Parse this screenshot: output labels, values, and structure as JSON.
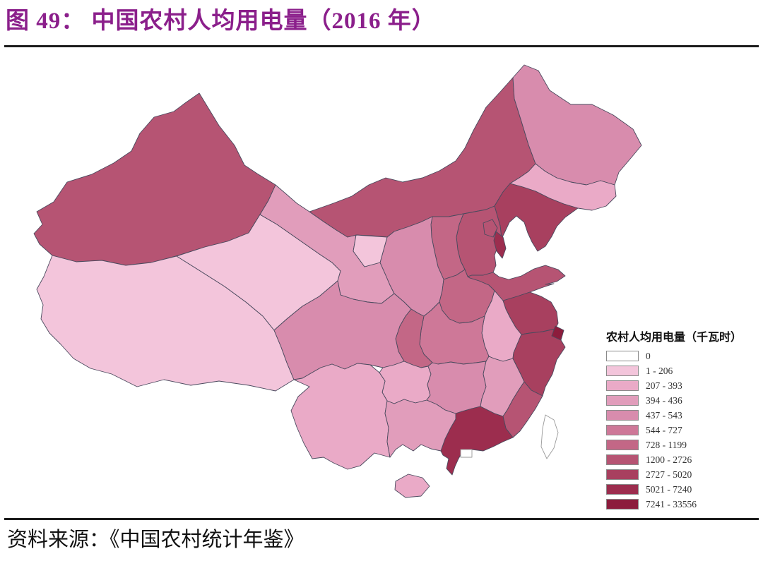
{
  "page": {
    "title": "图 49：  中国农村人均用电量（2016 年）",
    "title_color": "#8B1F8B",
    "source": "资料来源：《中国农村统计年鉴》"
  },
  "legend": {
    "title": "农村人均用电量（千瓦时）",
    "items": [
      {
        "label": "0",
        "color": "#FFFFFF"
      },
      {
        "label": "1 - 206",
        "color": "#F3C5DB"
      },
      {
        "label": "207 - 393",
        "color": "#EAAAC7"
      },
      {
        "label": "394 - 436",
        "color": "#E19DBB"
      },
      {
        "label": "437 - 543",
        "color": "#D88CAD"
      },
      {
        "label": "544 - 727",
        "color": "#CE7898"
      },
      {
        "label": "728 - 1199",
        "color": "#C36786"
      },
      {
        "label": "1200 - 2726",
        "color": "#B65473"
      },
      {
        "label": "2727 - 5020",
        "color": "#A8405F"
      },
      {
        "label": "5021 - 7240",
        "color": "#9C2D4E"
      },
      {
        "label": "7241 - 33556",
        "color": "#8C1C3C"
      }
    ]
  },
  "map": {
    "stroke": "#4a4a5e",
    "no_data_fill": "#FFFFFF",
    "no_data_stroke": "#999999",
    "provinces": {
      "xinjiang": 7,
      "xizang": 1,
      "qinghai": 1,
      "gansu": 3,
      "neimenggu": 7,
      "heilongjiang": 4,
      "jilin": 2,
      "liaoning": 8,
      "hebei": 7,
      "beijing": 7,
      "tianjin": 9,
      "shanxi": 6,
      "shaanxi": 4,
      "ningxia": 1,
      "shandong": 7,
      "henan": 6,
      "jiangsu": 8,
      "anhui": 2,
      "hubei": 5,
      "chongqing": 6,
      "sichuan": 4,
      "guizhou": 2,
      "yunnan": 2,
      "hunan": 4,
      "jiangxi": 3,
      "zhejiang": 8,
      "fujian": 7,
      "guangdong": 9,
      "guangxi": 3,
      "hainan": 2,
      "shanghai": 10,
      "taiwan": null,
      "hongkong-macau": null
    }
  },
  "chart_data": {
    "type": "choropleth",
    "title": "图 49：中国农村人均用电量（2016 年）",
    "legend_title": "农村人均用电量（千瓦时）",
    "unit": "千瓦时",
    "source": "资料来源：《中国农村统计年鉴》",
    "classes": [
      "0",
      "1 - 206",
      "207 - 393",
      "394 - 436",
      "437 - 543",
      "544 - 727",
      "728 - 1199",
      "1200 - 2726",
      "2727 - 5020",
      "5021 - 7240",
      "7241 - 33556"
    ],
    "regions": [
      {
        "name": "新疆",
        "range": "1200 - 2726"
      },
      {
        "name": "西藏",
        "range": "1 - 206"
      },
      {
        "name": "青海",
        "range": "1 - 206"
      },
      {
        "name": "宁夏",
        "range": "1 - 206"
      },
      {
        "name": "甘肃",
        "range": "394 - 436"
      },
      {
        "name": "内蒙古",
        "range": "1200 - 2726"
      },
      {
        "name": "黑龙江",
        "range": "437 - 543"
      },
      {
        "name": "吉林",
        "range": "207 - 393"
      },
      {
        "name": "辽宁",
        "range": "2727 - 5020"
      },
      {
        "name": "河北",
        "range": "1200 - 2726"
      },
      {
        "name": "北京",
        "range": "1200 - 2726"
      },
      {
        "name": "天津",
        "range": "5021 - 7240"
      },
      {
        "name": "山西",
        "range": "728 - 1199"
      },
      {
        "name": "陕西",
        "range": "437 - 543"
      },
      {
        "name": "山东",
        "range": "1200 - 2726"
      },
      {
        "name": "河南",
        "range": "728 - 1199"
      },
      {
        "name": "江苏",
        "range": "2727 - 5020"
      },
      {
        "name": "安徽",
        "range": "207 - 393"
      },
      {
        "name": "湖北",
        "range": "544 - 727"
      },
      {
        "name": "重庆",
        "range": "728 - 1199"
      },
      {
        "name": "四川",
        "range": "437 - 543"
      },
      {
        "name": "贵州",
        "range": "207 - 393"
      },
      {
        "name": "云南",
        "range": "207 - 393"
      },
      {
        "name": "湖南",
        "range": "437 - 543"
      },
      {
        "name": "江西",
        "range": "394 - 436"
      },
      {
        "name": "浙江",
        "range": "2727 - 5020"
      },
      {
        "name": "福建",
        "range": "1200 - 2726"
      },
      {
        "name": "广东",
        "range": "5021 - 7240"
      },
      {
        "name": "广西",
        "range": "394 - 436"
      },
      {
        "name": "海南",
        "range": "207 - 393"
      },
      {
        "name": "上海",
        "range": "7241 - 33556"
      },
      {
        "name": "台湾",
        "range": null
      },
      {
        "name": "香港/澳门",
        "range": null
      }
    ]
  }
}
